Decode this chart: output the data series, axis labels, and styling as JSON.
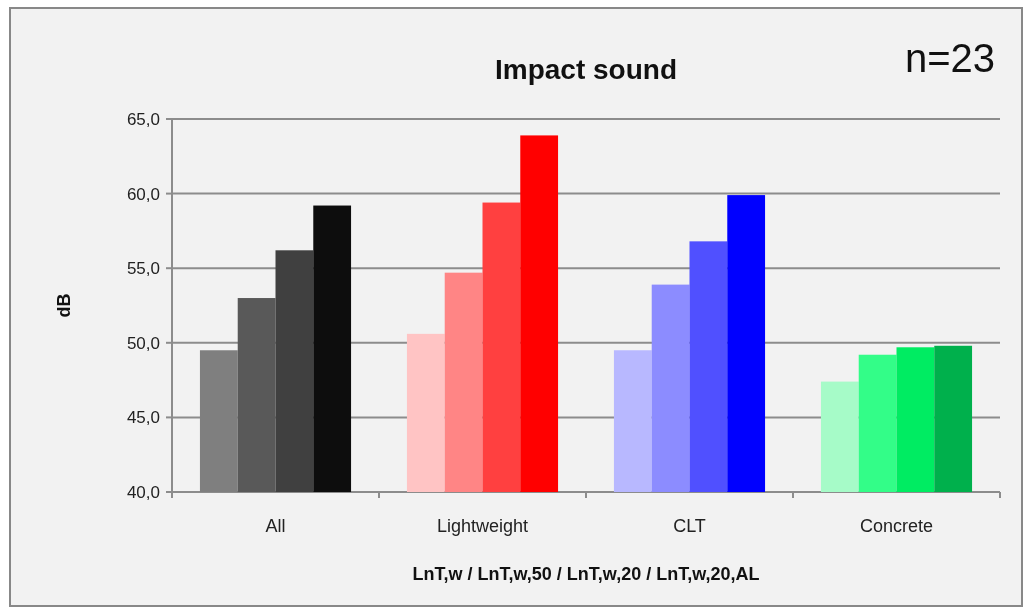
{
  "chart_data": {
    "type": "bar",
    "title": "Impact sound",
    "xlabel": "LnT,w / LnT,w,50 / LnT,w,20 / LnT,w,20,AL",
    "ylabel": "dB",
    "annotations": [
      "n=23"
    ],
    "categories": [
      "All",
      "Lightweight",
      "CLT",
      "Concrete"
    ],
    "series": [
      {
        "colors": [
          "#7f7f7f",
          "#ffc4c4",
          "#b8b8ff",
          "#a6fbc8"
        ],
        "values": [
          49.5,
          50.6,
          49.5,
          47.4
        ]
      },
      {
        "colors": [
          "#595959",
          "#ff8585",
          "#8c8cff",
          "#33fd88"
        ],
        "values": [
          53.0,
          54.7,
          53.9,
          49.2
        ]
      },
      {
        "colors": [
          "#404040",
          "#ff4040",
          "#5050ff",
          "#00ec62"
        ],
        "values": [
          56.2,
          59.4,
          56.8,
          49.7
        ]
      },
      {
        "colors": [
          "#0d0d0d",
          "#ff0000",
          "#0000ff",
          "#00b04c"
        ],
        "values": [
          59.2,
          63.9,
          59.9,
          49.8
        ]
      }
    ],
    "ylim": [
      40,
      65
    ],
    "yticks": [
      {
        "value": 40,
        "label": "40,0"
      },
      {
        "value": 45,
        "label": "45,0"
      },
      {
        "value": 50,
        "label": "50,0"
      },
      {
        "value": 55,
        "label": "55,0"
      },
      {
        "value": 60,
        "label": "60,0"
      },
      {
        "value": 65,
        "label": "65,0"
      }
    ],
    "grid": "y"
  }
}
